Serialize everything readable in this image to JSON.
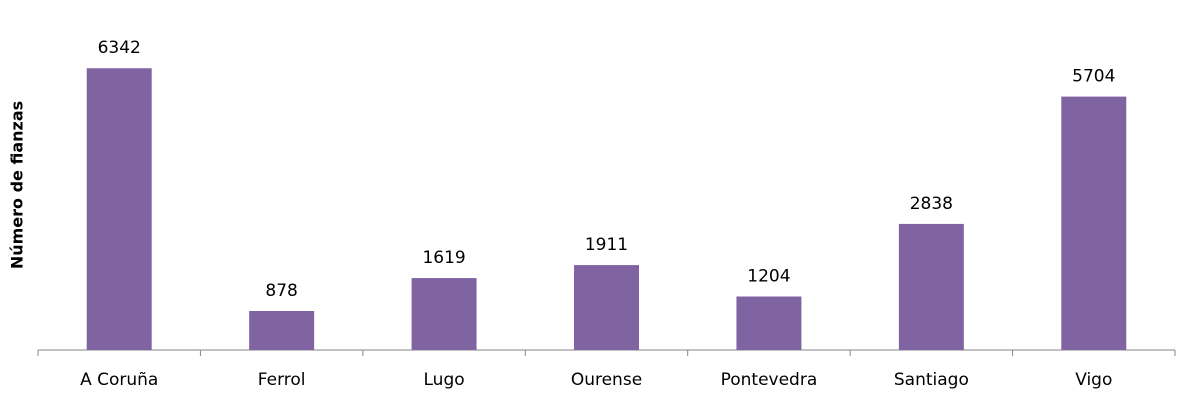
{
  "chart_data": {
    "type": "bar",
    "y_label": "Número de fianzas",
    "categories": [
      "A Coruña",
      "Ferrol",
      "Lugo",
      "Ourense",
      "Pontevedra",
      "Santiago",
      "Vigo"
    ],
    "values": [
      6342,
      878,
      1619,
      1911,
      1204,
      2838,
      5704
    ],
    "color": "#8064a2",
    "ylim": [
      0,
      7000
    ]
  }
}
